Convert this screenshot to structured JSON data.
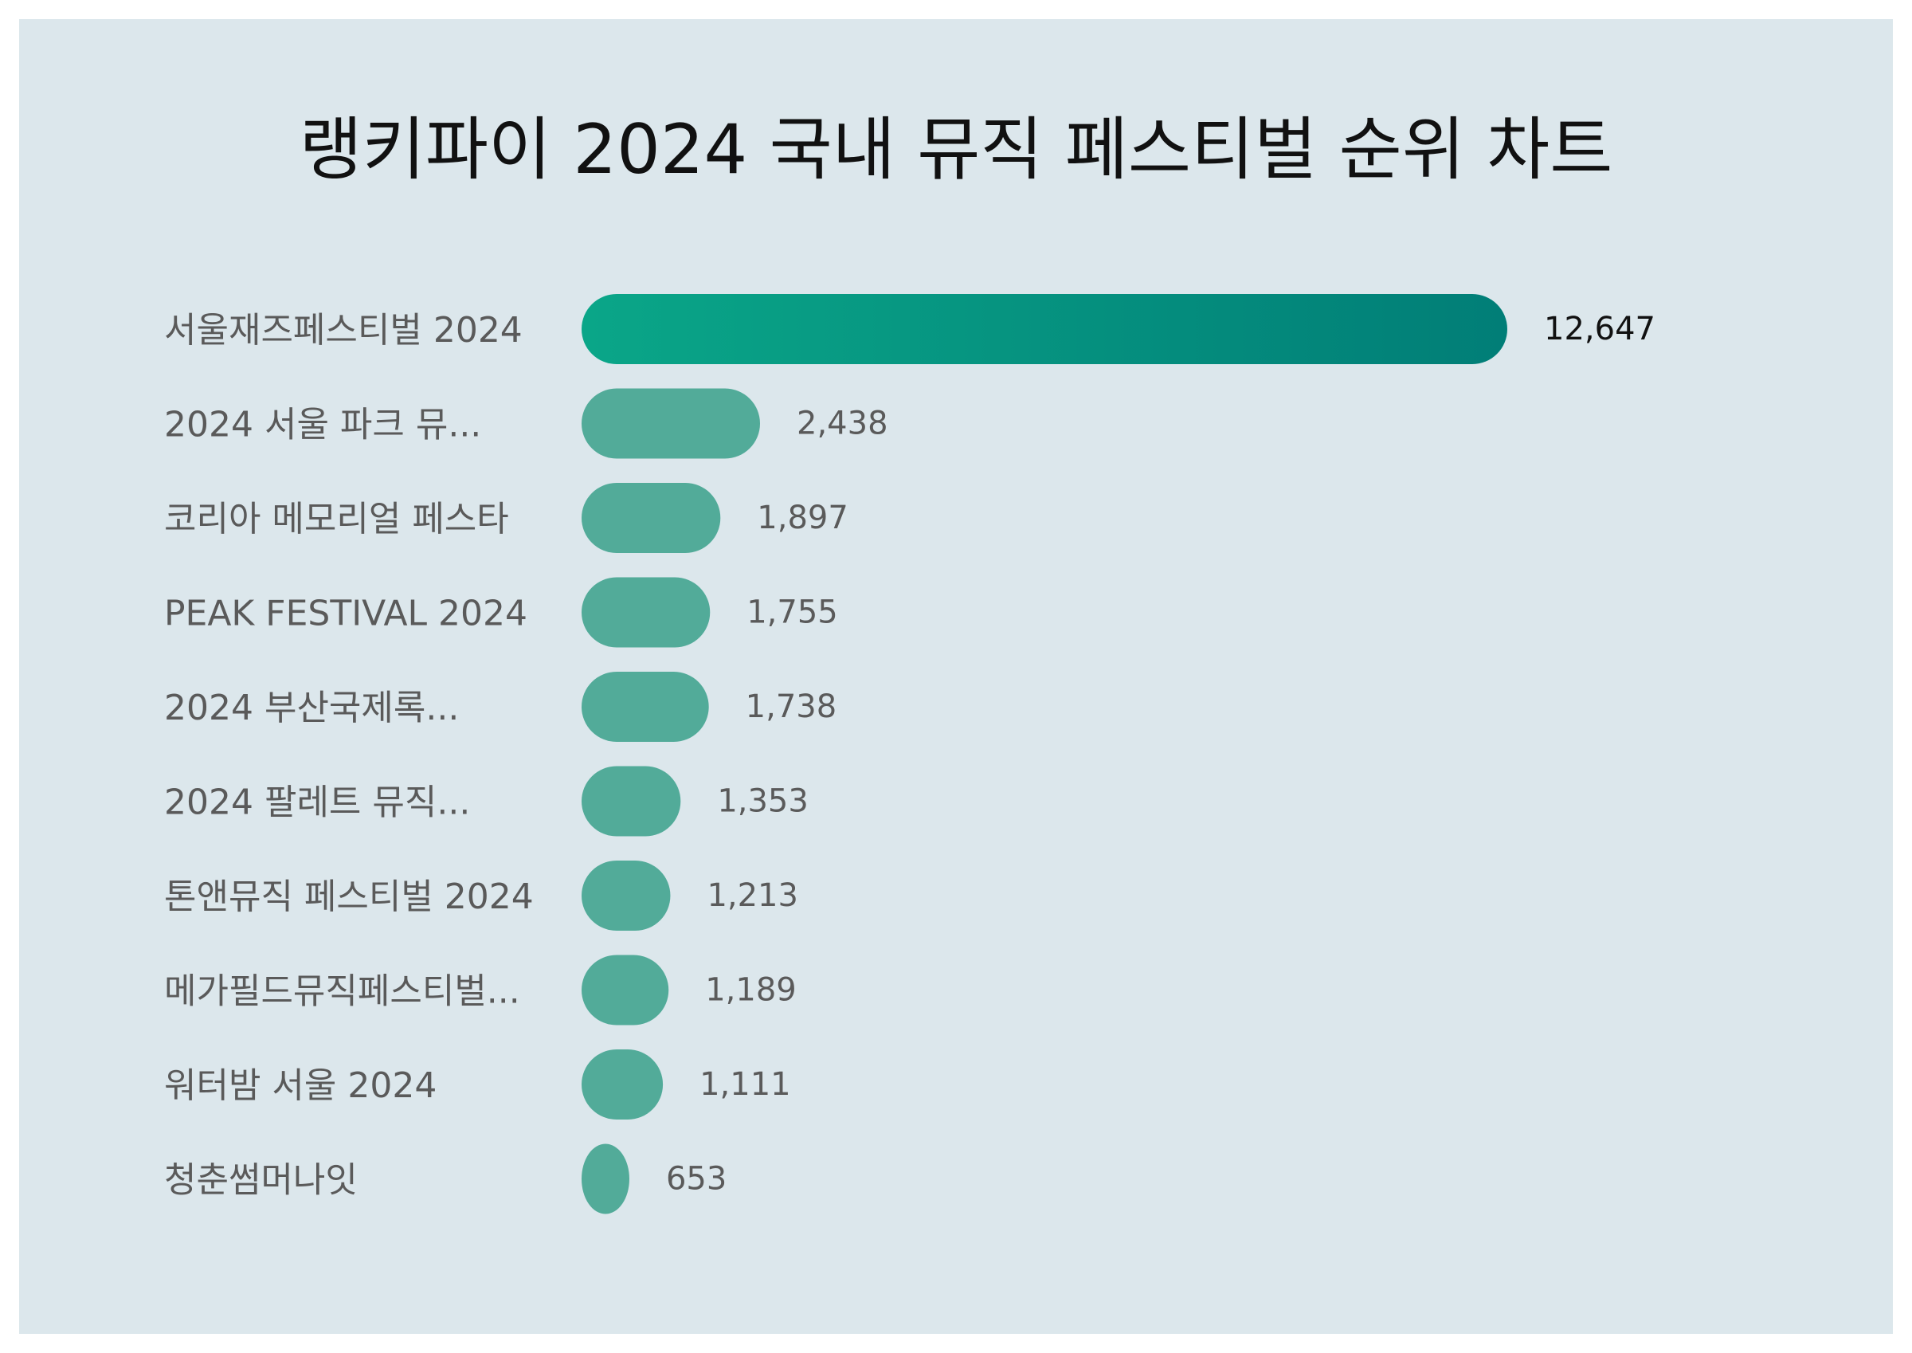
{
  "title": "랭키파이 2024 국내 뮤직 페스티벌 순위 차트",
  "colors": {
    "background": "#dce7ec",
    "bar": "#52ab99",
    "top_bar_start": "#0aa688",
    "top_bar_end": "#017e77",
    "label": "#5a5a5a"
  },
  "chart_data": {
    "type": "bar",
    "orientation": "horizontal",
    "title": "랭키파이 2024 국내 뮤직 페스티벌 순위 차트",
    "categories": [
      "서울재즈페스티벌 2024",
      "2024 서울 파크 뮤...",
      "코리아 메모리얼 페스타",
      "PEAK FESTIVAL 2024",
      "2024 부산국제록...",
      "2024 팔레트 뮤직...",
      "톤앤뮤직 페스티벌 2024",
      "메가필드뮤직페스티벌...",
      "워터밤 서울 2024",
      "청춘썸머나잇"
    ],
    "values": [
      12647,
      2438,
      1897,
      1755,
      1738,
      1353,
      1213,
      1189,
      1111,
      653
    ],
    "value_labels": [
      "12,647",
      "2,438",
      "1,897",
      "1,755",
      "1,738",
      "1,353",
      "1,213",
      "1,189",
      "1,111",
      "653"
    ],
    "xlim": [
      0,
      12647
    ],
    "grid": false,
    "legend": "none"
  }
}
